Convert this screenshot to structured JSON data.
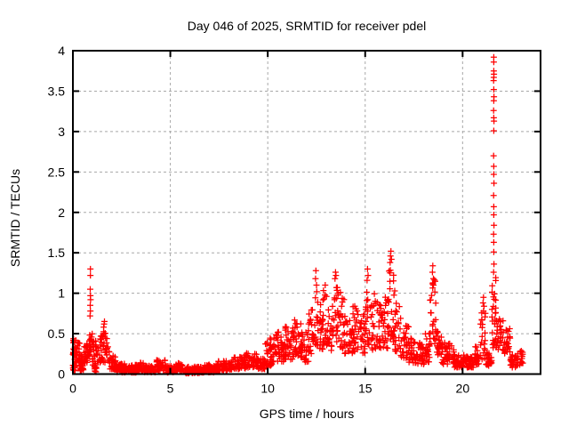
{
  "chart_data": {
    "type": "scatter",
    "title": "Day 046 of 2025, SRMTID for receiver pdel",
    "xlabel": "GPS time / hours",
    "ylabel": "SRMTID / TECUs",
    "series_name": "SRMTID",
    "xlim": [
      0,
      24
    ],
    "ylim": [
      0,
      4
    ],
    "xticks": [
      0,
      5,
      10,
      15,
      20
    ],
    "xtick_labels": [
      "0",
      "5",
      "10",
      "15",
      "20"
    ],
    "yticks": [
      0,
      0.5,
      1,
      1.5,
      2,
      2.5,
      3,
      3.5,
      4
    ],
    "ytick_labels": [
      "0",
      "0.5",
      "1",
      "1.5",
      "2",
      "2.5",
      "3",
      "3.5",
      "4"
    ],
    "grid": {
      "show": true,
      "color": "#a8a8a8",
      "dash": "3,3"
    },
    "legend": "none",
    "marker": {
      "shape": "plus",
      "color": "#ff0000",
      "size": 7
    },
    "bands": [
      [
        0.0,
        0.12,
        0.1,
        0.5,
        20
      ],
      [
        0.0,
        0.12,
        0.04,
        0.1,
        8
      ],
      [
        0.12,
        0.35,
        0.14,
        0.42,
        24
      ],
      [
        0.35,
        0.55,
        0.04,
        0.14,
        22
      ],
      [
        0.38,
        0.52,
        0.14,
        0.3,
        8
      ],
      [
        0.55,
        0.78,
        0.14,
        0.38,
        22
      ],
      [
        0.8,
        1.0,
        0.22,
        0.55,
        22
      ],
      [
        1.0,
        1.3,
        0.1,
        0.42,
        28
      ],
      [
        1.05,
        1.25,
        0.02,
        0.1,
        12
      ],
      [
        1.35,
        1.8,
        0.14,
        0.55,
        40
      ],
      [
        1.8,
        2.2,
        0.06,
        0.28,
        30
      ],
      [
        2.2,
        2.65,
        0.02,
        0.13,
        40
      ],
      [
        2.65,
        3.25,
        0.02,
        0.12,
        45
      ],
      [
        3.25,
        3.65,
        0.03,
        0.16,
        30
      ],
      [
        3.65,
        4.3,
        0.02,
        0.1,
        45
      ],
      [
        4.3,
        4.75,
        0.04,
        0.18,
        32
      ],
      [
        4.75,
        5.25,
        0.02,
        0.1,
        35
      ],
      [
        5.25,
        5.65,
        0.03,
        0.14,
        28
      ],
      [
        5.65,
        6.6,
        0.01,
        0.09,
        60
      ],
      [
        6.6,
        7.4,
        0.02,
        0.12,
        55
      ],
      [
        7.4,
        8.2,
        0.04,
        0.16,
        55
      ],
      [
        8.2,
        8.85,
        0.06,
        0.22,
        45
      ],
      [
        8.85,
        9.45,
        0.08,
        0.26,
        42
      ],
      [
        9.45,
        9.85,
        0.06,
        0.2,
        28
      ],
      [
        9.85,
        10.35,
        0.1,
        0.45,
        38
      ],
      [
        10.35,
        10.85,
        0.15,
        0.55,
        38
      ],
      [
        10.85,
        11.35,
        0.18,
        0.6,
        38
      ],
      [
        11.35,
        11.7,
        0.22,
        0.68,
        28
      ],
      [
        11.7,
        12.1,
        0.15,
        0.55,
        30
      ],
      [
        12.1,
        12.38,
        0.25,
        0.8,
        22
      ],
      [
        12.38,
        12.58,
        0.35,
        1.05,
        16
      ],
      [
        12.58,
        12.82,
        0.3,
        0.88,
        18
      ],
      [
        12.82,
        13.1,
        0.35,
        1.05,
        20
      ],
      [
        13.1,
        13.38,
        0.28,
        0.85,
        20
      ],
      [
        13.38,
        13.62,
        0.4,
        1.1,
        18
      ],
      [
        13.62,
        13.92,
        0.3,
        1.02,
        22
      ],
      [
        13.92,
        14.35,
        0.25,
        0.75,
        30
      ],
      [
        14.35,
        14.72,
        0.28,
        0.85,
        26
      ],
      [
        14.72,
        15.02,
        0.25,
        0.75,
        22
      ],
      [
        15.02,
        15.28,
        0.35,
        1.1,
        18
      ],
      [
        15.28,
        15.62,
        0.3,
        1.0,
        24
      ],
      [
        15.62,
        15.92,
        0.32,
        0.92,
        22
      ],
      [
        15.92,
        16.15,
        0.3,
        1.08,
        18
      ],
      [
        16.15,
        16.52,
        0.4,
        1.3,
        30
      ],
      [
        16.52,
        16.82,
        0.28,
        0.9,
        22
      ],
      [
        16.82,
        17.25,
        0.18,
        0.6,
        30
      ],
      [
        17.25,
        17.65,
        0.14,
        0.45,
        28
      ],
      [
        17.65,
        18.05,
        0.12,
        0.4,
        28
      ],
      [
        18.05,
        18.32,
        0.15,
        0.52,
        20
      ],
      [
        18.32,
        18.62,
        0.35,
        1.2,
        26
      ],
      [
        18.62,
        18.92,
        0.22,
        0.62,
        22
      ],
      [
        18.92,
        19.55,
        0.12,
        0.4,
        45
      ],
      [
        19.55,
        20.1,
        0.08,
        0.25,
        38
      ],
      [
        20.1,
        20.6,
        0.08,
        0.22,
        35
      ],
      [
        20.6,
        20.92,
        0.12,
        0.35,
        24
      ],
      [
        20.92,
        21.18,
        0.18,
        0.8,
        20
      ],
      [
        21.18,
        21.5,
        0.1,
        0.28,
        24
      ],
      [
        21.5,
        21.72,
        0.3,
        1.2,
        26
      ],
      [
        21.72,
        22.1,
        0.3,
        0.72,
        28
      ],
      [
        22.1,
        22.45,
        0.25,
        0.58,
        24
      ],
      [
        22.45,
        22.78,
        0.08,
        0.25,
        24
      ],
      [
        22.78,
        23.1,
        0.1,
        0.3,
        22
      ]
    ],
    "points": [
      [
        0.88,
        0.72
      ],
      [
        0.9,
        0.78
      ],
      [
        0.89,
        0.85
      ],
      [
        0.91,
        0.92
      ],
      [
        0.9,
        0.97
      ],
      [
        0.89,
        1.05
      ],
      [
        0.9,
        1.22
      ],
      [
        0.9,
        1.3
      ],
      [
        1.58,
        0.58
      ],
      [
        1.6,
        0.62
      ],
      [
        1.62,
        0.65
      ],
      [
        12.45,
        1.18
      ],
      [
        12.47,
        1.28
      ],
      [
        12.5,
        1.1
      ],
      [
        12.95,
        1.1
      ],
      [
        13.45,
        1.18
      ],
      [
        13.48,
        1.26
      ],
      [
        13.5,
        1.22
      ],
      [
        15.1,
        1.16
      ],
      [
        15.12,
        1.3
      ],
      [
        15.15,
        1.22
      ],
      [
        16.28,
        1.38
      ],
      [
        16.3,
        1.46
      ],
      [
        16.32,
        1.52
      ],
      [
        16.35,
        1.42
      ],
      [
        18.45,
        1.26
      ],
      [
        18.47,
        1.34
      ],
      [
        18.5,
        1.18
      ],
      [
        21.05,
        0.88
      ],
      [
        21.07,
        0.95
      ],
      [
        21.1,
        0.84
      ],
      [
        21.59,
        1.26
      ],
      [
        21.61,
        1.36
      ],
      [
        21.6,
        1.51
      ],
      [
        21.6,
        1.63
      ],
      [
        21.59,
        1.73
      ],
      [
        21.61,
        1.84
      ],
      [
        21.6,
        1.97
      ],
      [
        21.6,
        2.07
      ],
      [
        21.59,
        2.21
      ],
      [
        21.61,
        2.36
      ],
      [
        21.6,
        2.47
      ],
      [
        21.6,
        2.57
      ],
      [
        21.59,
        2.7
      ],
      [
        21.6,
        3.01
      ],
      [
        21.61,
        3.13
      ],
      [
        21.6,
        3.17
      ],
      [
        21.59,
        3.26
      ],
      [
        21.6,
        3.38
      ],
      [
        21.61,
        3.43
      ],
      [
        21.6,
        3.52
      ],
      [
        21.59,
        3.63
      ],
      [
        21.6,
        3.67
      ],
      [
        21.61,
        3.71
      ],
      [
        21.6,
        3.75
      ],
      [
        21.6,
        3.86
      ],
      [
        21.6,
        3.92
      ]
    ]
  }
}
